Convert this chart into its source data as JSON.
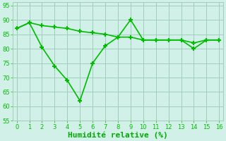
{
  "x": [
    0,
    1,
    2,
    3,
    4,
    5,
    6,
    7,
    8,
    9,
    10,
    11,
    12,
    13,
    14,
    15,
    16
  ],
  "line1": [
    87,
    89,
    88,
    87.5,
    87,
    86,
    85.5,
    85,
    84,
    84,
    83,
    83,
    83,
    83,
    82,
    83,
    83
  ],
  "line2": [
    87,
    89,
    80.5,
    74,
    69,
    62,
    75,
    81,
    84,
    90,
    83,
    83,
    83,
    83,
    80,
    83,
    83
  ],
  "line_color": "#00bb00",
  "bg_color": "#d0f0e8",
  "grid_color": "#a0ccbc",
  "xlabel": "Humidité relative (%)",
  "xlabel_color": "#00aa00",
  "ylim": [
    55,
    96
  ],
  "xlim": [
    -0.3,
    16.3
  ],
  "yticks": [
    55,
    60,
    65,
    70,
    75,
    80,
    85,
    90,
    95
  ],
  "xticks": [
    0,
    1,
    2,
    3,
    4,
    5,
    6,
    7,
    8,
    9,
    10,
    11,
    12,
    13,
    14,
    15,
    16
  ],
  "marker": "+",
  "linewidth": 1.2,
  "markersize": 5,
  "markeredgewidth": 1.5,
  "tick_fontsize": 6,
  "xlabel_fontsize": 8
}
